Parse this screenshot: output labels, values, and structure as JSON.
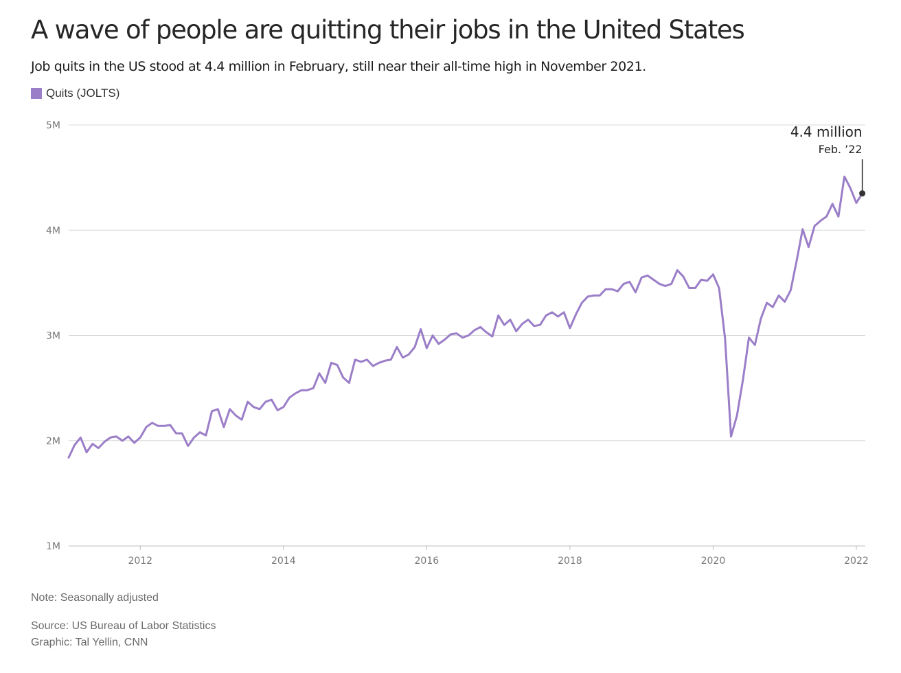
{
  "title": "A wave of people are quitting their jobs in the United States",
  "subtitle": "Job quits in the US stood at 4.4 million in February, still near their all-time high in November 2021.",
  "legend": {
    "label": "Quits (JOLTS)",
    "color": "#9b7ec8"
  },
  "note": "Note: Seasonally adjusted",
  "source": "Source: US Bureau of Labor Statistics",
  "credit": "Graphic: Tal Yellin, CNN",
  "chart_data": {
    "type": "line",
    "title": "A wave of people are quitting their jobs in the United States",
    "xlabel": "",
    "ylabel": "",
    "ylim": [
      1,
      5
    ],
    "xlim": [
      2011.0,
      2022.125
    ],
    "y_ticks": [
      1,
      2,
      3,
      4,
      5
    ],
    "y_tick_labels": [
      "1M",
      "2M",
      "3M",
      "4M",
      "5M"
    ],
    "x_ticks": [
      2012,
      2014,
      2016,
      2018,
      2020,
      2022
    ],
    "x_tick_labels": [
      "2012",
      "2014",
      "2016",
      "2018",
      "2020",
      "2022"
    ],
    "grid": "horizontal",
    "legend_position": "top-left",
    "annotation": {
      "value_label": "4.4 million",
      "date_label": "Feb. ’22",
      "x": 2022.083,
      "y": 4.35
    },
    "series": [
      {
        "name": "Quits (JOLTS)",
        "color": "#9b7ec8",
        "start": "2011-01",
        "unit": "millions",
        "values": [
          1.84,
          1.96,
          2.03,
          1.89,
          1.97,
          1.93,
          1.99,
          2.03,
          2.04,
          2.0,
          2.04,
          1.98,
          2.03,
          2.13,
          2.17,
          2.14,
          2.14,
          2.15,
          2.07,
          2.07,
          1.95,
          2.03,
          2.08,
          2.05,
          2.28,
          2.3,
          2.13,
          2.3,
          2.24,
          2.2,
          2.37,
          2.32,
          2.3,
          2.37,
          2.39,
          2.29,
          2.32,
          2.41,
          2.45,
          2.48,
          2.48,
          2.5,
          2.64,
          2.55,
          2.74,
          2.72,
          2.6,
          2.55,
          2.77,
          2.75,
          2.77,
          2.71,
          2.74,
          2.76,
          2.77,
          2.89,
          2.79,
          2.82,
          2.89,
          3.06,
          2.88,
          3.0,
          2.92,
          2.96,
          3.01,
          3.02,
          2.98,
          3.0,
          3.05,
          3.08,
          3.03,
          2.99,
          3.19,
          3.1,
          3.15,
          3.04,
          3.11,
          3.15,
          3.09,
          3.1,
          3.19,
          3.22,
          3.18,
          3.22,
          3.07,
          3.2,
          3.31,
          3.37,
          3.38,
          3.38,
          3.44,
          3.44,
          3.42,
          3.49,
          3.51,
          3.41,
          3.55,
          3.57,
          3.53,
          3.49,
          3.47,
          3.49,
          3.62,
          3.56,
          3.45,
          3.45,
          3.53,
          3.52,
          3.58,
          3.45,
          2.97,
          2.04,
          2.24,
          2.58,
          2.98,
          2.91,
          3.16,
          3.31,
          3.27,
          3.38,
          3.32,
          3.43,
          3.71,
          4.01,
          3.84,
          4.04,
          4.09,
          4.13,
          4.25,
          4.13,
          4.51,
          4.4,
          4.26,
          4.35
        ]
      }
    ]
  }
}
